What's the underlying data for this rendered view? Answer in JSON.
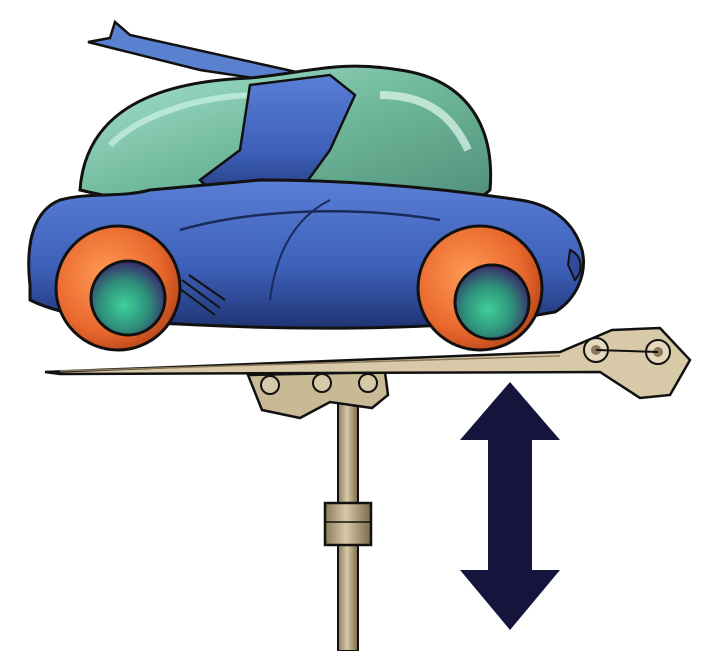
{
  "illustration": {
    "subject": "concept-car-on-lift-platform",
    "icons": [
      "car-icon",
      "lift-platform-icon",
      "vertical-double-arrow-icon"
    ],
    "colors": {
      "background": "#ffffff",
      "car_body": "#3d5fb8",
      "car_body_dark": "#1f3473",
      "canopy": "#6fb89a",
      "canopy_light": "#a8e3d2",
      "wheel_tire": "#e8672c",
      "wheel_hub": "#2e8f7a",
      "platform": "#d8c9a8",
      "pole": "#b8a888",
      "arrow": "#14143c",
      "outline": "#111111"
    }
  }
}
